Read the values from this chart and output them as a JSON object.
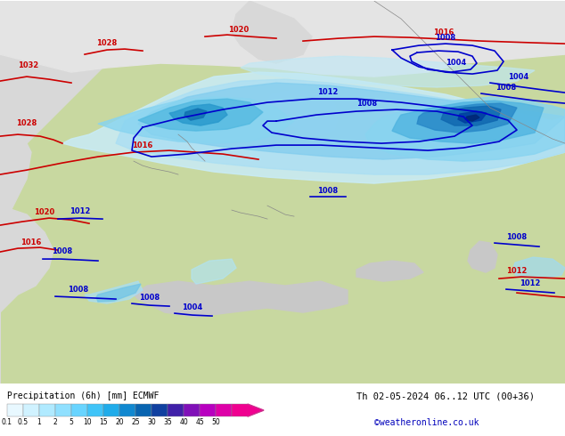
{
  "title_left": "Precipitation (6h) [mm] ECMWF",
  "title_right": "Th 02-05-2024 06..12 UTC (00+36)",
  "credit": "©weatheronline.co.uk",
  "colorbar_labels": [
    "0.1",
    "0.5",
    "1",
    "2",
    "5",
    "10",
    "15",
    "20",
    "25",
    "30",
    "35",
    "40",
    "45",
    "50"
  ],
  "land_color": "#c8d8a0",
  "sea_color": "#d8d8d8",
  "precip_light1": "#d0f0f8",
  "precip_light2": "#a0ddf0",
  "precip_med1": "#70c4e8",
  "precip_med2": "#40a0d0",
  "precip_dark1": "#1070b8",
  "precip_dark2": "#0040a0",
  "precip_darkest": "#002080",
  "bg_color": "#d8d8d8",
  "bottom_bg": "#ffffff",
  "figure_width": 6.34,
  "figure_height": 4.9,
  "red_isobar_color": "#cc0000",
  "blue_isobar_color": "#0000cc"
}
